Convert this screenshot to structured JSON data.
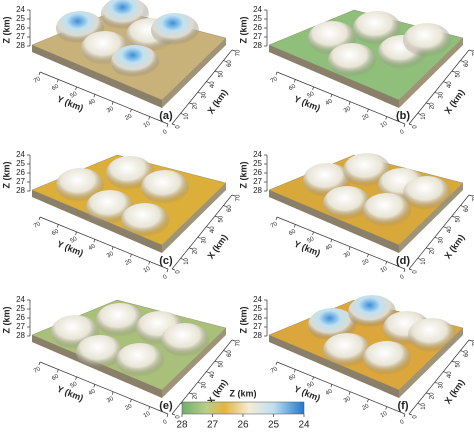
{
  "panels": [
    {
      "label": "(a)",
      "color": "#c9b27a"
    },
    {
      "label": "(b)",
      "color": "#8fbf7a"
    },
    {
      "label": "(c)",
      "color": "#dcae3a"
    },
    {
      "label": "(d)",
      "color": "#d9a83a"
    },
    {
      "label": "(e)",
      "color": "#a9c07a"
    },
    {
      "label": "(f)",
      "color": "#dba63c"
    }
  ],
  "axes": {
    "z_label": "Z (km)",
    "y_label": "Y (km)",
    "x_label": "X (km)",
    "z_ticks": [
      24,
      25,
      26,
      27,
      28
    ],
    "y_ticks": [
      70,
      60,
      50,
      40,
      30,
      20,
      10,
      0
    ],
    "x_ticks": [
      0,
      10,
      20,
      30,
      40,
      50,
      60,
      70
    ]
  },
  "colorbar": {
    "title": "Z (km)",
    "lim": [
      28,
      24
    ],
    "ticks": [
      28,
      27,
      26,
      25,
      24
    ]
  }
}
